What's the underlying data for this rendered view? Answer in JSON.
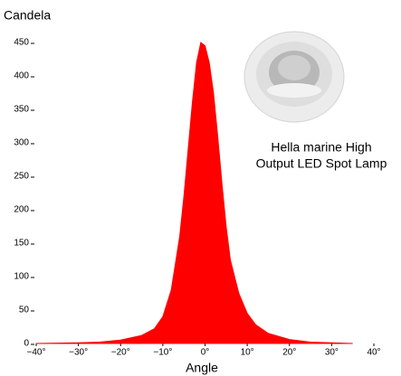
{
  "chart_data": {
    "type": "area",
    "y_label": "Candela",
    "x_label": "Angle",
    "annotation": [
      "Hella marine High",
      "Output LED Spot Lamp"
    ],
    "color": "#ff0000",
    "x": [
      -40,
      -30,
      -25,
      -20,
      -15,
      -12,
      -10,
      -8,
      -6,
      -5,
      -4,
      -3,
      -2,
      -1,
      0,
      1,
      2,
      3,
      4,
      5,
      6,
      8,
      10,
      12,
      15,
      20,
      25,
      30,
      35
    ],
    "values": [
      0,
      1,
      2,
      5,
      12,
      22,
      40,
      80,
      160,
      220,
      290,
      360,
      420,
      450,
      445,
      420,
      375,
      310,
      240,
      175,
      125,
      75,
      45,
      28,
      15,
      6,
      2,
      1,
      0
    ],
    "xlim": [
      -40,
      40
    ],
    "xticks": [
      {
        "value": -40,
        "label": "−40°"
      },
      {
        "value": -30,
        "label": "−30°"
      },
      {
        "value": -20,
        "label": "−20°"
      },
      {
        "value": -10,
        "label": "−10°"
      },
      {
        "value": 0,
        "label": "0°"
      },
      {
        "value": 10,
        "label": "10°"
      },
      {
        "value": 20,
        "label": "20°"
      },
      {
        "value": 30,
        "label": "30°"
      },
      {
        "value": 40,
        "label": "40°"
      }
    ],
    "ylim": [
      0,
      450
    ],
    "yticks": [
      0,
      50,
      100,
      150,
      200,
      250,
      300,
      350,
      400,
      450
    ]
  }
}
